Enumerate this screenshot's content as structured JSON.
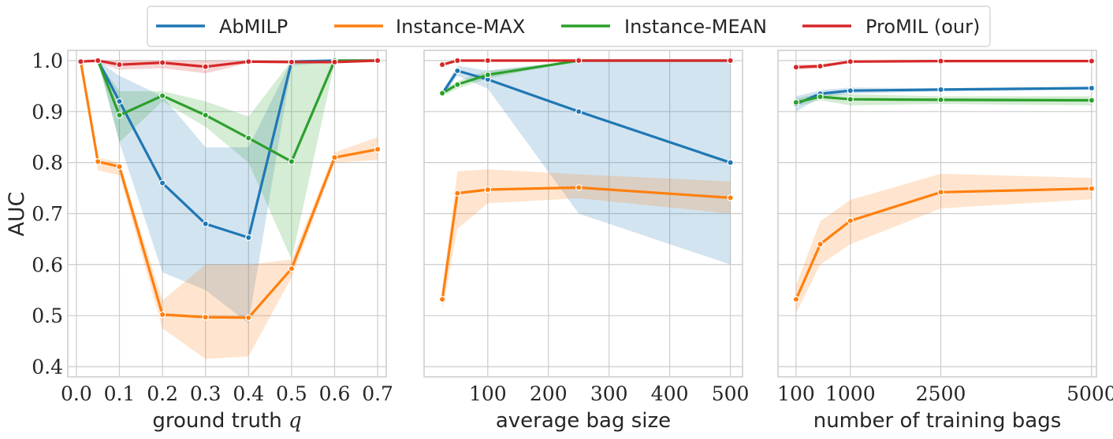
{
  "chart_data": {
    "type": "line",
    "colors": {
      "AbMILP": "#1f77b4",
      "Instance-MAX": "#ff7f0e",
      "Instance-MEAN": "#2ca02c",
      "ProMIL (our)": "#d62728"
    },
    "legend": [
      "AbMILP",
      "Instance-MAX",
      "Instance-MEAN",
      "ProMIL (our)"
    ],
    "legend_position": "top-center",
    "ylabel": "AUC",
    "ylim": [
      0.38,
      1.02
    ],
    "yticks": [
      0.4,
      0.5,
      0.6,
      0.7,
      0.8,
      0.9,
      1.0
    ],
    "ytick_labels": [
      "0.4",
      "0.5",
      "0.6",
      "0.7",
      "0.8",
      "0.9",
      "1.0"
    ],
    "panels": [
      {
        "xlabel": "ground truth q",
        "xlim": [
          -0.02,
          0.72
        ],
        "xticks": [
          0.0,
          0.1,
          0.2,
          0.3,
          0.4,
          0.5,
          0.6,
          0.7
        ],
        "xtick_labels": [
          "0.0",
          "0.1",
          "0.2",
          "0.3",
          "0.4",
          "0.5",
          "0.6",
          "0.7"
        ],
        "x": [
          0.01,
          0.05,
          0.1,
          0.2,
          0.3,
          0.4,
          0.5,
          0.6,
          0.7
        ],
        "series": [
          {
            "name": "AbMILP",
            "x": [
              0.05,
              0.1,
              0.2,
              0.3,
              0.4,
              0.5,
              0.6,
              0.7
            ],
            "values": [
              1.0,
              0.92,
              0.76,
              0.68,
              0.653,
              0.998,
              1.0,
              1.0
            ],
            "lower": [
              1.0,
              0.84,
              0.585,
              0.55,
              0.485,
              0.99,
              0.998,
              1.0
            ],
            "upper": [
              1.0,
              0.97,
              0.93,
              0.83,
              0.83,
              1.0,
              1.0,
              1.0
            ]
          },
          {
            "name": "Instance-MAX",
            "x": [
              0.01,
              0.05,
              0.1,
              0.2,
              0.3,
              0.4,
              0.5,
              0.6,
              0.7
            ],
            "values": [
              0.998,
              0.802,
              0.792,
              0.502,
              0.497,
              0.496,
              0.592,
              0.81,
              0.826
            ],
            "lower": [
              0.998,
              0.785,
              0.775,
              0.475,
              0.415,
              0.42,
              0.575,
              0.8,
              0.805
            ],
            "upper": [
              0.998,
              0.81,
              0.8,
              0.53,
              0.6,
              0.6,
              0.61,
              0.82,
              0.85
            ]
          },
          {
            "name": "Instance-MEAN",
            "x": [
              0.05,
              0.1,
              0.2,
              0.3,
              0.4,
              0.5,
              0.6,
              0.7
            ],
            "values": [
              1.0,
              0.893,
              0.931,
              0.893,
              0.848,
              0.802,
              1.0,
              1.0
            ],
            "lower": [
              1.0,
              0.84,
              0.92,
              0.87,
              0.8,
              0.61,
              0.995,
              1.0
            ],
            "upper": [
              1.0,
              0.94,
              0.94,
              0.92,
              0.89,
              1.0,
              1.0,
              1.0
            ]
          },
          {
            "name": "ProMIL (our)",
            "x": [
              0.01,
              0.05,
              0.1,
              0.2,
              0.3,
              0.4,
              0.5,
              0.6,
              0.7
            ],
            "values": [
              0.998,
              1.0,
              0.992,
              0.996,
              0.988,
              0.998,
              0.997,
              0.997,
              1.0
            ],
            "lower": [
              0.998,
              0.995,
              0.982,
              0.985,
              0.975,
              0.995,
              0.995,
              0.995,
              1.0
            ],
            "upper": [
              1.0,
              1.0,
              1.0,
              1.0,
              1.0,
              1.0,
              1.0,
              1.0,
              1.0
            ]
          }
        ]
      },
      {
        "xlabel": "average bag size",
        "xlim": [
          -5,
          520
        ],
        "xticks": [
          100,
          200,
          300,
          400,
          500
        ],
        "xtick_labels": [
          "100",
          "200",
          "300",
          "400",
          "500"
        ],
        "series": [
          {
            "name": "AbMILP",
            "x": [
              25,
              50,
              100,
              250,
              500
            ],
            "values": [
              0.935,
              0.98,
              0.963,
              0.9,
              0.8
            ],
            "lower": [
              0.93,
              0.97,
              0.945,
              0.7,
              0.6
            ],
            "upper": [
              0.94,
              0.99,
              0.98,
              1.0,
              1.0
            ]
          },
          {
            "name": "Instance-MAX",
            "x": [
              25,
              50,
              100,
              250,
              500
            ],
            "values": [
              0.532,
              0.74,
              0.747,
              0.751,
              0.731
            ],
            "lower": [
              0.51,
              0.67,
              0.72,
              0.73,
              0.7
            ],
            "upper": [
              0.55,
              0.783,
              0.787,
              0.777,
              0.763
            ]
          },
          {
            "name": "Instance-MEAN",
            "x": [
              25,
              50,
              100,
              250,
              500
            ],
            "values": [
              0.936,
              0.953,
              0.972,
              1.0,
              1.0
            ],
            "lower": [
              0.93,
              0.945,
              0.965,
              1.0,
              1.0
            ],
            "upper": [
              0.942,
              0.96,
              0.98,
              1.0,
              1.0
            ]
          },
          {
            "name": "ProMIL (our)",
            "x": [
              25,
              50,
              100,
              250,
              500
            ],
            "values": [
              0.992,
              1.0,
              1.0,
              1.0,
              1.0
            ],
            "lower": [
              0.988,
              0.998,
              1.0,
              1.0,
              1.0
            ],
            "upper": [
              0.996,
              1.0,
              1.0,
              1.0,
              1.0
            ]
          }
        ]
      },
      {
        "xlabel": "number of training bags",
        "xlim": [
          -200,
          5080
        ],
        "xticks": [
          100,
          1000,
          2500,
          5000
        ],
        "xtick_labels": [
          "100",
          "1000",
          "2500",
          "5000"
        ],
        "series": [
          {
            "name": "AbMILP",
            "x": [
              100,
              500,
              1000,
              2500,
              5000
            ],
            "values": [
              0.915,
              0.935,
              0.941,
              0.943,
              0.946
            ],
            "lower": [
              0.9,
              0.928,
              0.935,
              0.94,
              0.943
            ],
            "upper": [
              0.93,
              0.942,
              0.947,
              0.946,
              0.949
            ]
          },
          {
            "name": "Instance-MAX",
            "x": [
              100,
              500,
              1000,
              2500,
              5000
            ],
            "values": [
              0.532,
              0.64,
              0.686,
              0.742,
              0.749
            ],
            "lower": [
              0.505,
              0.6,
              0.64,
              0.71,
              0.728
            ],
            "upper": [
              0.56,
              0.685,
              0.727,
              0.778,
              0.77
            ]
          },
          {
            "name": "Instance-MEAN",
            "x": [
              100,
              500,
              1000,
              2500,
              5000
            ],
            "values": [
              0.918,
              0.929,
              0.924,
              0.923,
              0.922
            ],
            "lower": [
              0.91,
              0.922,
              0.912,
              0.915,
              0.912
            ],
            "upper": [
              0.926,
              0.936,
              0.934,
              0.93,
              0.93
            ]
          },
          {
            "name": "ProMIL (our)",
            "x": [
              100,
              500,
              1000,
              2500,
              5000
            ],
            "values": [
              0.987,
              0.989,
              0.998,
              0.999,
              0.999
            ],
            "lower": [
              0.982,
              0.985,
              0.996,
              0.998,
              0.998
            ],
            "upper": [
              0.992,
              0.993,
              1.0,
              1.0,
              1.0
            ]
          }
        ]
      }
    ]
  }
}
